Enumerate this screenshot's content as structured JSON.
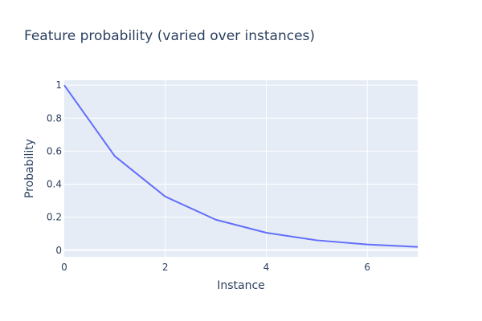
{
  "chart_data": {
    "type": "line",
    "title": "Feature probability (varied over instances)",
    "xlabel": "Instance",
    "ylabel": "Probability",
    "xlim": [
      0,
      7
    ],
    "ylim": [
      -0.04,
      1.03
    ],
    "x_ticks": [
      0,
      2,
      4,
      6
    ],
    "x_tick_labels": [
      "0",
      "2",
      "4",
      "6"
    ],
    "y_ticks": [
      0,
      0.2,
      0.4,
      0.6,
      0.8,
      1
    ],
    "y_tick_labels": [
      "0",
      "0.2",
      "0.4",
      "0.6",
      "0.8",
      "1"
    ],
    "grid": true,
    "series": [
      {
        "x": [
          0,
          1,
          2,
          3,
          4,
          5,
          6,
          7
        ],
        "values": [
          1.0,
          0.57,
          0.325,
          0.185,
          0.106,
          0.06,
          0.035,
          0.02
        ],
        "color": "#636efa"
      }
    ],
    "colors": {
      "plot_background": "#e5ecf6",
      "grid": "#ffffff",
      "text": "#2a3f5f",
      "line": "#636efa"
    }
  }
}
